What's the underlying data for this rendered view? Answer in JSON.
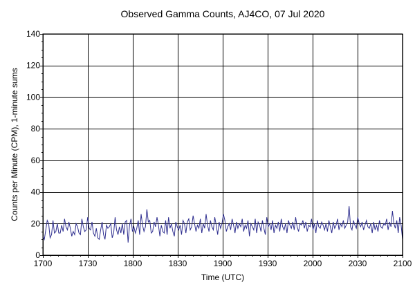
{
  "chart_data": {
    "type": "line",
    "title": "Observed Gamma Counts, AJ4CO, 07 Jul 2020",
    "xlabel": "Time (UTC)",
    "ylabel": "Counts per Minute (CPM), 1-minute sums",
    "xlim": [
      0,
      240
    ],
    "ylim": [
      0,
      140
    ],
    "x_tick_values": [
      0,
      30,
      60,
      90,
      120,
      150,
      180,
      210,
      240
    ],
    "x_tick_labels": [
      "1700",
      "1730",
      "1800",
      "1830",
      "1900",
      "1930",
      "2000",
      "2030",
      "2100"
    ],
    "y_tick_values": [
      0,
      20,
      40,
      60,
      80,
      100,
      120,
      140
    ],
    "y_tick_labels": [
      "0",
      "20",
      "40",
      "60",
      "80",
      "100",
      "120",
      "140"
    ],
    "grid": true,
    "line_color": "#2e2e8f",
    "series": [
      {
        "values": [
          12,
          10,
          16,
          22,
          20,
          11,
          13,
          22,
          14,
          15,
          20,
          14,
          14,
          19,
          15,
          23,
          18,
          16,
          21,
          17,
          12,
          15,
          13,
          20,
          18,
          14,
          13,
          23,
          18,
          15,
          16,
          24,
          17,
          16,
          21,
          14,
          12,
          17,
          11,
          10,
          16,
          21,
          13,
          10,
          19,
          17,
          18,
          20,
          11,
          14,
          24,
          16,
          13,
          18,
          14,
          20,
          13,
          21,
          22,
          8,
          19,
          23,
          15,
          18,
          14,
          17,
          22,
          13,
          26,
          19,
          15,
          18,
          29,
          21,
          22,
          14,
          15,
          21,
          18,
          24,
          19,
          12,
          19,
          15,
          14,
          22,
          13,
          24,
          17,
          20,
          15,
          12,
          21,
          18,
          16,
          19,
          13,
          22,
          20,
          14,
          21,
          23,
          16,
          18,
          25,
          20,
          15,
          19,
          17,
          23,
          14,
          20,
          17,
          26,
          19,
          15,
          22,
          18,
          16,
          24,
          19,
          13,
          21,
          17,
          20,
          26,
          22,
          15,
          18,
          20,
          16,
          23,
          19,
          14,
          21,
          17,
          20,
          18,
          23,
          15,
          19,
          17,
          22,
          12,
          20,
          18,
          16,
          23,
          14,
          21,
          19,
          15,
          22,
          17,
          13,
          24,
          18,
          20,
          16,
          22,
          14,
          19,
          17,
          21,
          15,
          23,
          18,
          16,
          20,
          14,
          22,
          19,
          17,
          21,
          16,
          24,
          18,
          15,
          20,
          19,
          22,
          17,
          21,
          15,
          19,
          18,
          23,
          16,
          20,
          14,
          22,
          18,
          17,
          21,
          19,
          16,
          20,
          15,
          22,
          18,
          14,
          21,
          17,
          19,
          23,
          16,
          20,
          18,
          22,
          17,
          19,
          21,
          31,
          18,
          16,
          22,
          19,
          17,
          24,
          20,
          18,
          21,
          16,
          19,
          22,
          18,
          17,
          20,
          14,
          21,
          16,
          19,
          15,
          22,
          18,
          17,
          20,
          19,
          23,
          16,
          21,
          18,
          28,
          20,
          17,
          22,
          14,
          24,
          19,
          10
        ]
      }
    ]
  }
}
